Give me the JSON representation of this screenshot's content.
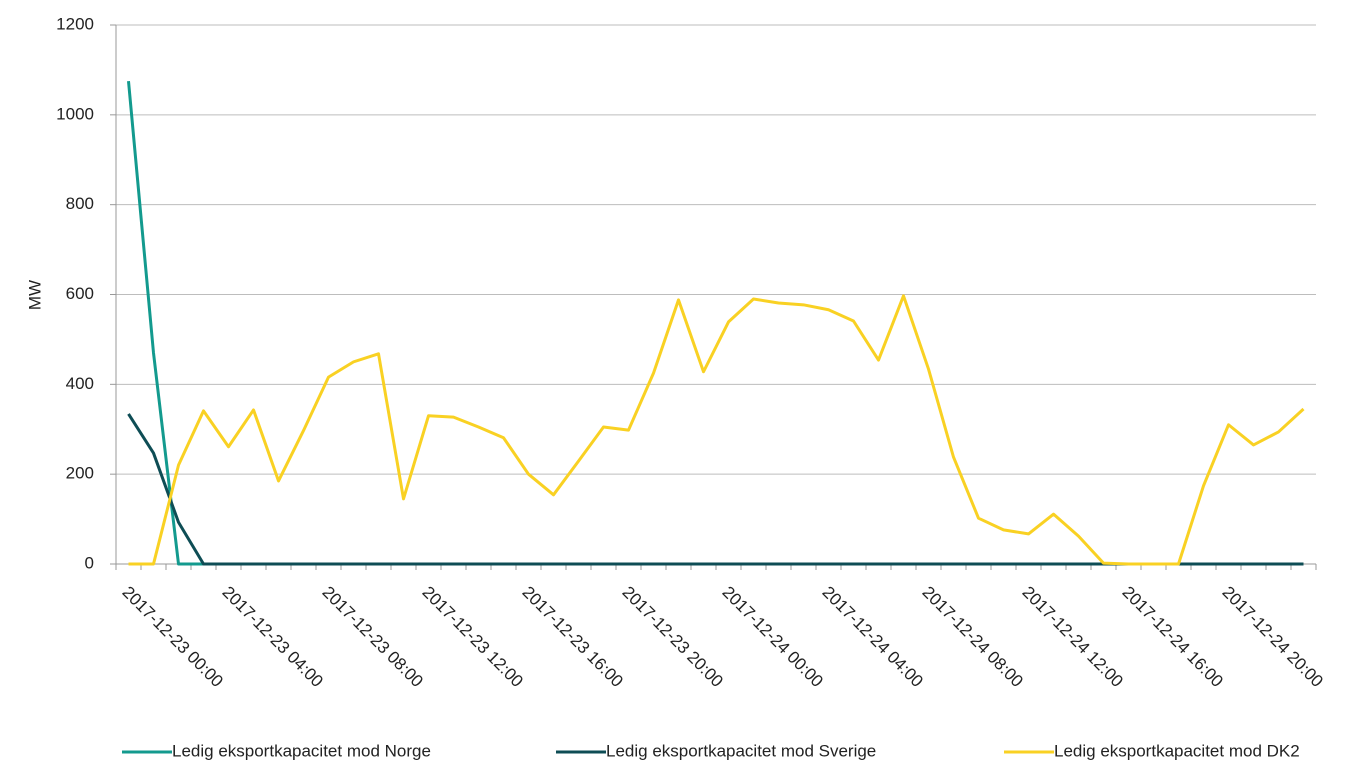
{
  "chart_data": {
    "type": "line",
    "ylabel": "MW",
    "categories": [
      "2017-12-23 00:00",
      null,
      null,
      null,
      "2017-12-23 04:00",
      null,
      null,
      null,
      "2017-12-23 08:00",
      null,
      null,
      null,
      "2017-12-23 12:00",
      null,
      null,
      null,
      "2017-12-23 16:00",
      null,
      null,
      null,
      "2017-12-23 20:00",
      null,
      null,
      null,
      "2017-12-24 00:00",
      null,
      null,
      null,
      "2017-12-24 04:00",
      null,
      null,
      null,
      "2017-12-24 08:00",
      null,
      null,
      null,
      "2017-12-24 12:00",
      null,
      null,
      null,
      "2017-12-24 16:00",
      null,
      null,
      null,
      "2017-12-24 20:00",
      null,
      null,
      null
    ],
    "series": [
      {
        "name": "Ledig eksportkapacitet mod Norge",
        "color": "#139a8e",
        "values": [
          1075,
          470,
          0,
          0,
          0,
          0,
          0,
          0,
          0,
          0,
          0,
          0,
          0,
          0,
          0,
          0,
          0,
          0,
          0,
          0,
          0,
          0,
          0,
          0,
          0,
          0,
          0,
          0,
          0,
          0,
          0,
          0,
          0,
          0,
          0,
          0,
          0,
          0,
          0,
          0,
          0,
          0,
          0,
          0,
          0,
          0,
          0,
          0
        ]
      },
      {
        "name": "Ledig eksportkapacitet mod Sverige",
        "color": "#0e4d55",
        "values": [
          334,
          247,
          93,
          0,
          0,
          0,
          0,
          0,
          0,
          0,
          0,
          0,
          0,
          0,
          0,
          0,
          0,
          0,
          0,
          0,
          0,
          0,
          0,
          0,
          0,
          0,
          0,
          0,
          0,
          0,
          0,
          0,
          0,
          0,
          0,
          0,
          0,
          0,
          0,
          0,
          0,
          0,
          0,
          0,
          0,
          0,
          0,
          0
        ]
      },
      {
        "name": "Ledig eksportkapacitet mod DK2",
        "color": "#f9d123",
        "values": [
          0,
          0,
          220,
          341,
          261,
          343,
          185,
          297,
          416,
          450,
          468,
          145,
          330,
          327,
          305,
          281,
          200,
          154,
          229,
          305,
          298,
          425,
          588,
          428,
          539,
          590,
          581,
          577,
          566,
          541,
          454,
          597,
          434,
          238,
          102,
          76,
          67,
          111,
          62,
          2,
          0,
          0,
          0,
          174,
          310,
          265,
          294,
          345
        ]
      }
    ],
    "ylim": [
      0,
      1200
    ],
    "yticks": [
      0,
      200,
      400,
      600,
      800,
      1000,
      1200
    ],
    "grid": true,
    "legend": "bottom"
  }
}
